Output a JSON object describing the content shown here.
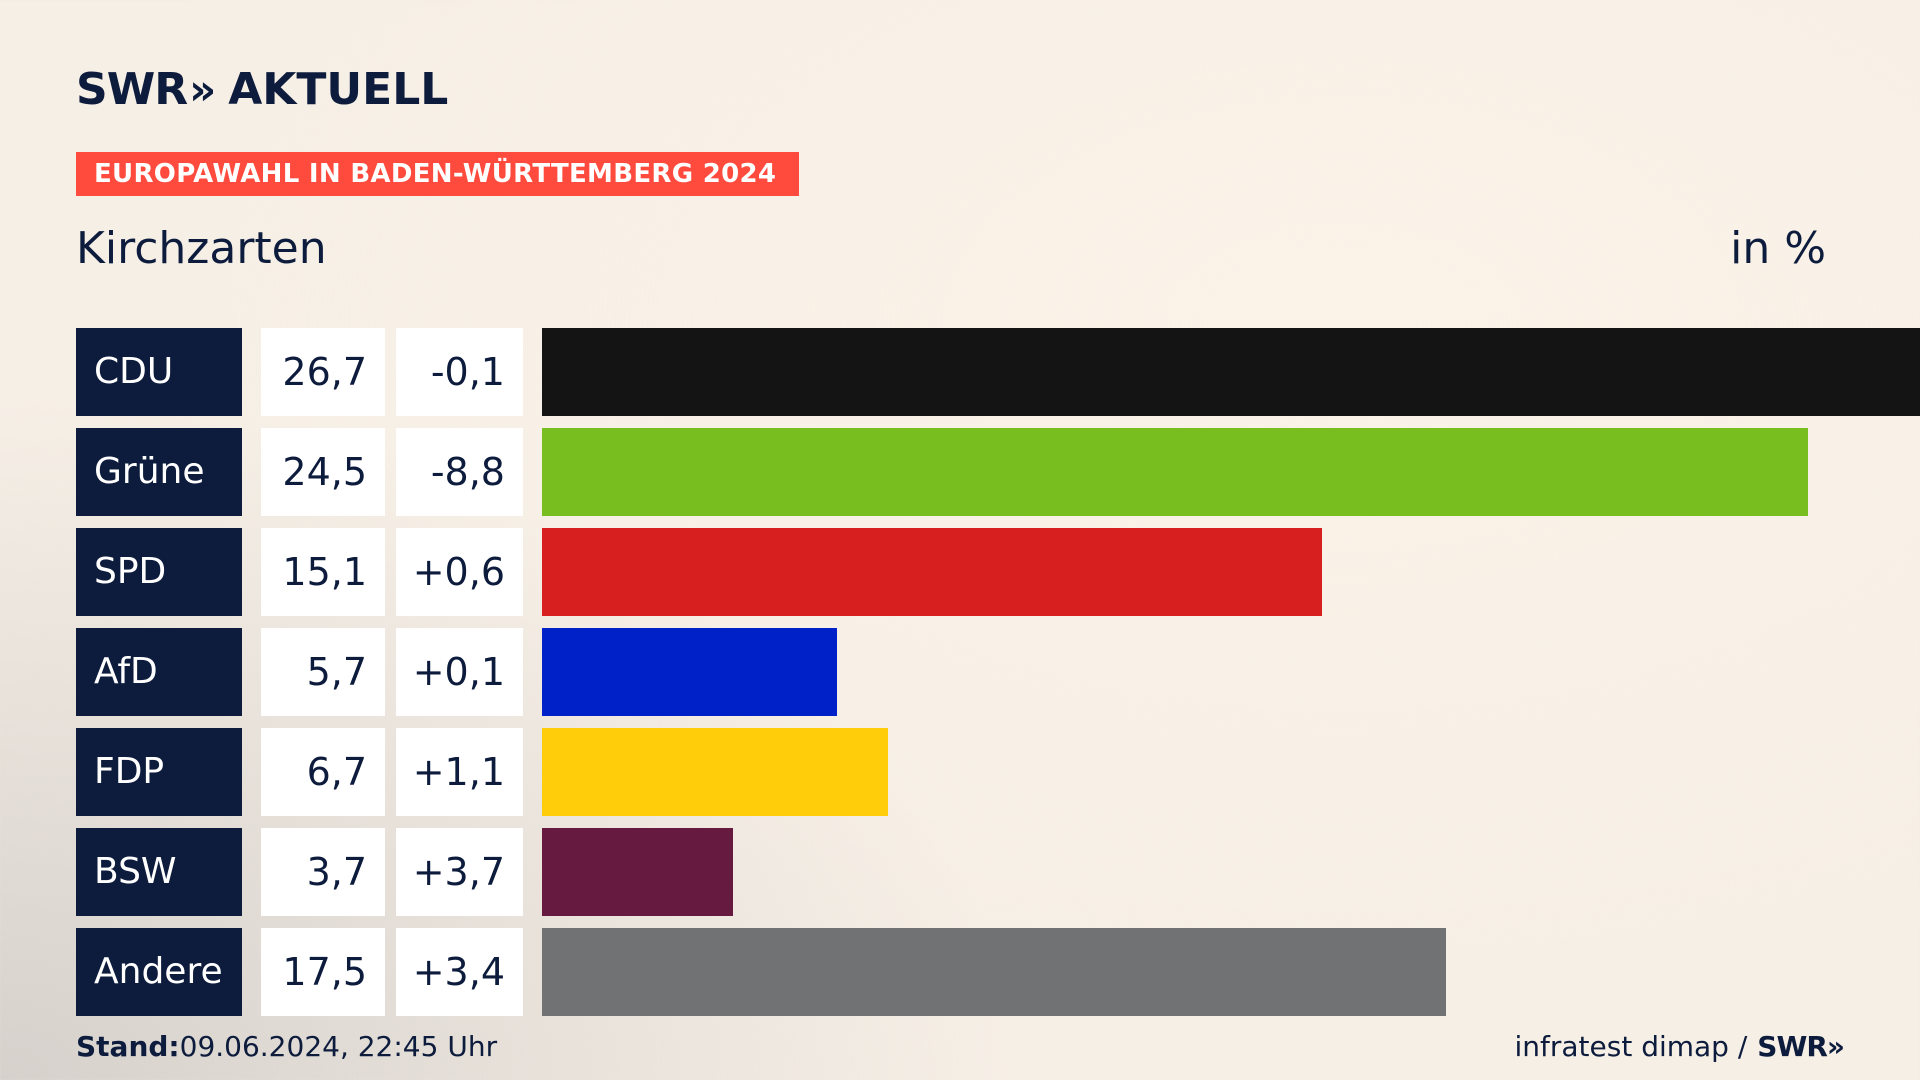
{
  "header": {
    "brand": "SWR",
    "brand_chevrons": "»",
    "title": "AKTUELL",
    "banner": "EUROPAWAHL IN BADEN-WÜRTTEMBERG 2024",
    "place": "Kirchzarten",
    "unit": "in %"
  },
  "chart_data": {
    "type": "bar",
    "orientation": "horizontal",
    "title": "Kirchzarten",
    "unit": "in %",
    "categories": [
      "CDU",
      "Grüne",
      "SPD",
      "AfD",
      "FDP",
      "BSW",
      "Andere"
    ],
    "values": [
      26.7,
      24.5,
      15.1,
      5.7,
      6.7,
      3.7,
      17.5
    ],
    "value_labels": [
      "26,7",
      "24,5",
      "15,1",
      "5,7",
      "6,7",
      "3,7",
      "17,5"
    ],
    "change_labels": [
      "-0,1",
      "-8,8",
      "+0,6",
      "+0,1",
      "+1,1",
      "+3,7",
      "+3,4"
    ],
    "colors": [
      "#141414",
      "#78be1e",
      "#d71f1f",
      "#0021c8",
      "#ffcd0a",
      "#661a3f",
      "#717274"
    ],
    "xlim": [
      0,
      26.7
    ]
  },
  "footer": {
    "stand_label": "Stand:",
    "stand_value": "09.06.2024, 22:45 Uhr",
    "source": "infratest dimap /",
    "source_brand": "SWR»"
  }
}
